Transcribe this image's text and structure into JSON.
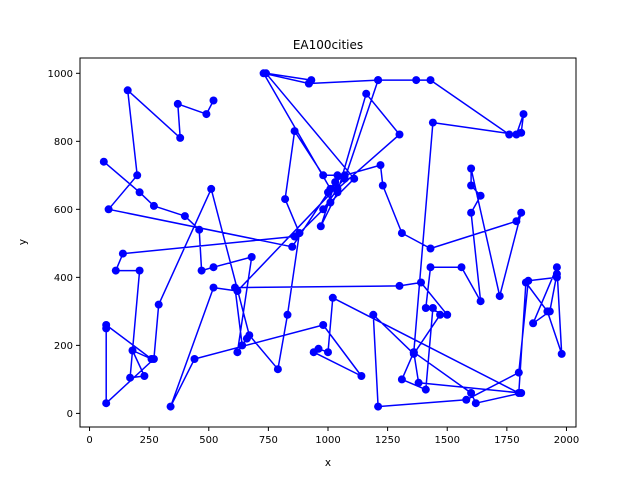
{
  "chart_data": {
    "type": "line",
    "title": "EA100cities",
    "xlabel": "x",
    "ylabel": "y",
    "xlim": [
      -40,
      2040
    ],
    "ylim": [
      -40,
      1045
    ],
    "xticks": [
      0,
      250,
      500,
      750,
      1000,
      1250,
      1500,
      1750,
      2000
    ],
    "yticks": [
      0,
      200,
      400,
      600,
      800,
      1000
    ],
    "grid": false,
    "series": [
      {
        "color": "#0000ff",
        "marker": "circle",
        "points": [
          [
            60,
            740
          ],
          [
            210,
            650
          ],
          [
            270,
            610
          ],
          [
            400,
            580
          ],
          [
            460,
            540
          ],
          [
            470,
            420
          ],
          [
            520,
            430
          ],
          [
            680,
            460
          ],
          [
            620,
            180
          ],
          [
            660,
            220
          ],
          [
            640,
            200
          ],
          [
            610,
            370
          ],
          [
            1300,
            375
          ],
          [
            1390,
            385
          ],
          [
            1500,
            290
          ],
          [
            1410,
            310
          ],
          [
            1430,
            430
          ],
          [
            1560,
            430
          ],
          [
            1640,
            330
          ],
          [
            1600,
            590
          ],
          [
            1640,
            640
          ],
          [
            1600,
            670
          ],
          [
            1600,
            720
          ],
          [
            1720,
            345
          ],
          [
            1810,
            590
          ],
          [
            1790,
            565
          ],
          [
            1430,
            485
          ],
          [
            1310,
            530
          ],
          [
            1230,
            670
          ],
          [
            1220,
            730
          ],
          [
            1070,
            700
          ],
          [
            1030,
            680
          ],
          [
            1000,
            650
          ],
          [
            1010,
            620
          ],
          [
            980,
            600
          ],
          [
            1040,
            660
          ],
          [
            1300,
            820
          ],
          [
            1160,
            940
          ],
          [
            1040,
            650
          ],
          [
            970,
            550
          ],
          [
            1040,
            700
          ],
          [
            980,
            700
          ],
          [
            860,
            830
          ],
          [
            820,
            630
          ],
          [
            880,
            530
          ],
          [
            860,
            520
          ],
          [
            140,
            470
          ],
          [
            110,
            420
          ],
          [
            210,
            420
          ],
          [
            170,
            105
          ],
          [
            230,
            110
          ],
          [
            180,
            185
          ],
          [
            260,
            160
          ],
          [
            70,
            260
          ],
          [
            70,
            250
          ],
          [
            70,
            30
          ],
          [
            270,
            160
          ],
          [
            290,
            320
          ],
          [
            510,
            660
          ],
          [
            670,
            230
          ],
          [
            790,
            130
          ],
          [
            830,
            290
          ],
          [
            880,
            530
          ],
          [
            1110,
            690
          ],
          [
            740,
            1000
          ],
          [
            930,
            980
          ],
          [
            920,
            970
          ],
          [
            1210,
            980
          ],
          [
            1370,
            980
          ],
          [
            1430,
            980
          ],
          [
            1760,
            820
          ],
          [
            1810,
            825
          ],
          [
            1820,
            880
          ],
          [
            1790,
            820
          ],
          [
            1440,
            855
          ],
          [
            1360,
            180
          ],
          [
            1380,
            90
          ],
          [
            1810,
            60
          ],
          [
            1620,
            30
          ],
          [
            1600,
            60
          ],
          [
            1360,
            180
          ],
          [
            1310,
            100
          ],
          [
            1410,
            70
          ],
          [
            1440,
            310
          ],
          [
            1470,
            290
          ],
          [
            1360,
            175
          ],
          [
            1190,
            290
          ],
          [
            1210,
            20
          ],
          [
            1580,
            40
          ],
          [
            1800,
            120
          ],
          [
            1840,
            390
          ],
          [
            1960,
            400
          ],
          [
            1960,
            410
          ],
          [
            1930,
            300
          ],
          [
            1860,
            265
          ],
          [
            1960,
            430
          ],
          [
            1980,
            175
          ],
          [
            1920,
            300
          ],
          [
            1830,
            385
          ],
          [
            1800,
            60
          ],
          [
            1020,
            340
          ],
          [
            1000,
            180
          ],
          [
            960,
            190
          ],
          [
            940,
            180
          ],
          [
            1140,
            110
          ],
          [
            980,
            260
          ],
          [
            440,
            160
          ],
          [
            340,
            20
          ],
          [
            520,
            370
          ],
          [
            620,
            360
          ],
          [
            1070,
            690
          ],
          [
            1210,
            980
          ],
          [
            920,
            970
          ],
          [
            730,
            1000
          ],
          [
            1010,
            660
          ],
          [
            850,
            490
          ],
          [
            80,
            600
          ],
          [
            200,
            700
          ],
          [
            160,
            950
          ],
          [
            380,
            810
          ],
          [
            370,
            910
          ],
          [
            490,
            880
          ],
          [
            520,
            920
          ]
        ]
      }
    ]
  }
}
